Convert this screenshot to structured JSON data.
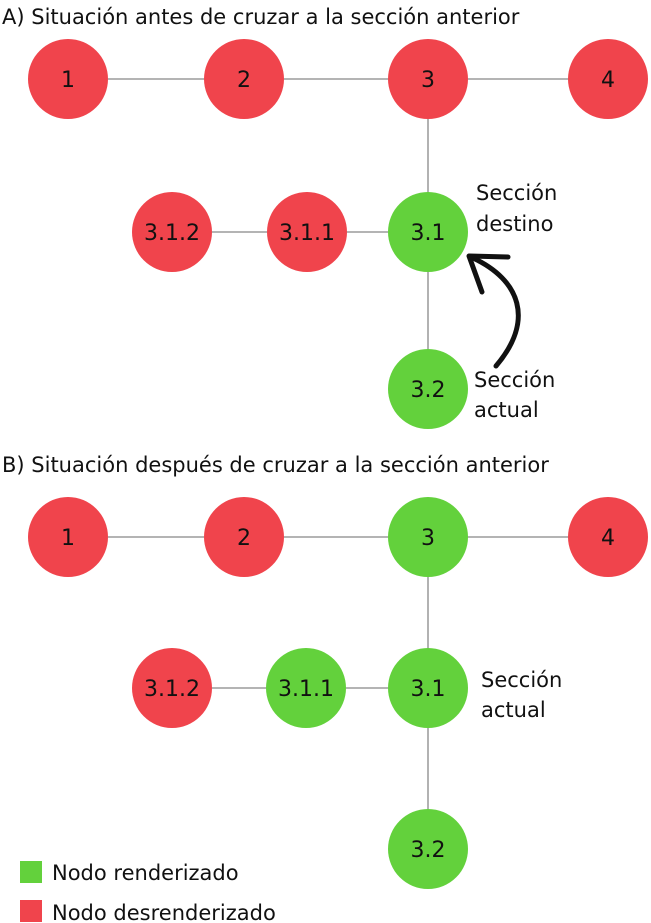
{
  "colors": {
    "rendered": "#63d13c",
    "unrendered": "#f0444c",
    "edge": "#888888",
    "arrow": "#111111"
  },
  "panel_a": {
    "title": "A) Situación antes de cruzar a la sección anterior",
    "nodes": [
      {
        "id": "1",
        "label": "1",
        "state": "unrendered"
      },
      {
        "id": "2",
        "label": "2",
        "state": "unrendered"
      },
      {
        "id": "3",
        "label": "3",
        "state": "unrendered"
      },
      {
        "id": "4",
        "label": "4",
        "state": "unrendered"
      },
      {
        "id": "3.1",
        "label": "3.1",
        "state": "rendered"
      },
      {
        "id": "3.1.1",
        "label": "3.1.1",
        "state": "unrendered"
      },
      {
        "id": "3.1.2",
        "label": "3.1.2",
        "state": "unrendered"
      },
      {
        "id": "3.2",
        "label": "3.2",
        "state": "rendered"
      }
    ],
    "target_annotation": [
      "Sección",
      "destino"
    ],
    "current_annotation": [
      "Sección",
      "actual"
    ]
  },
  "panel_b": {
    "title": "B) Situación después de cruzar a la sección anterior",
    "nodes": [
      {
        "id": "1",
        "label": "1",
        "state": "unrendered"
      },
      {
        "id": "2",
        "label": "2",
        "state": "unrendered"
      },
      {
        "id": "3",
        "label": "3",
        "state": "rendered"
      },
      {
        "id": "4",
        "label": "4",
        "state": "unrendered"
      },
      {
        "id": "3.1",
        "label": "3.1",
        "state": "rendered"
      },
      {
        "id": "3.1.1",
        "label": "3.1.1",
        "state": "rendered"
      },
      {
        "id": "3.1.2",
        "label": "3.1.2",
        "state": "unrendered"
      },
      {
        "id": "3.2",
        "label": "3.2",
        "state": "rendered"
      }
    ],
    "current_annotation": [
      "Sección",
      "actual"
    ]
  },
  "edges": [
    [
      "1",
      "2"
    ],
    [
      "2",
      "3"
    ],
    [
      "3",
      "4"
    ],
    [
      "3",
      "3.1"
    ],
    [
      "3.1",
      "3.1.1"
    ],
    [
      "3.1.1",
      "3.1.2"
    ],
    [
      "3.1",
      "3.2"
    ]
  ],
  "legend": {
    "rendered_label": "Nodo renderizado",
    "unrendered_label": "Nodo desrenderizado"
  }
}
